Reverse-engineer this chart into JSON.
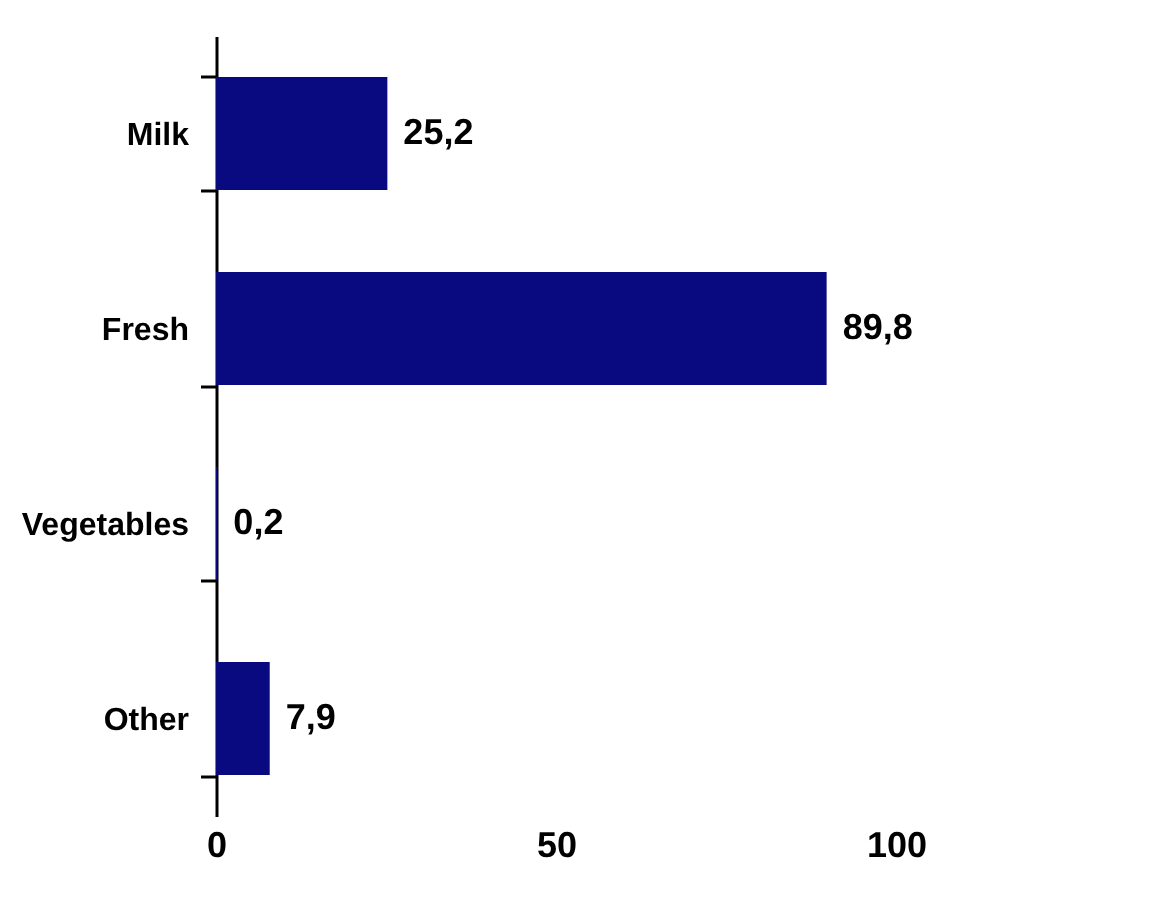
{
  "chart_data": {
    "type": "bar",
    "orientation": "horizontal",
    "categories": [
      "Milk",
      "Fresh",
      "Vegetables",
      "Other"
    ],
    "values": [
      25.2,
      89.8,
      0.2,
      7.9
    ],
    "value_labels": [
      "25,2",
      "89,8",
      "0,2",
      "7,9"
    ],
    "color": "#0a0a80",
    "xlim": [
      0,
      100
    ],
    "xticks": [
      0,
      50,
      100
    ],
    "grid": false
  }
}
